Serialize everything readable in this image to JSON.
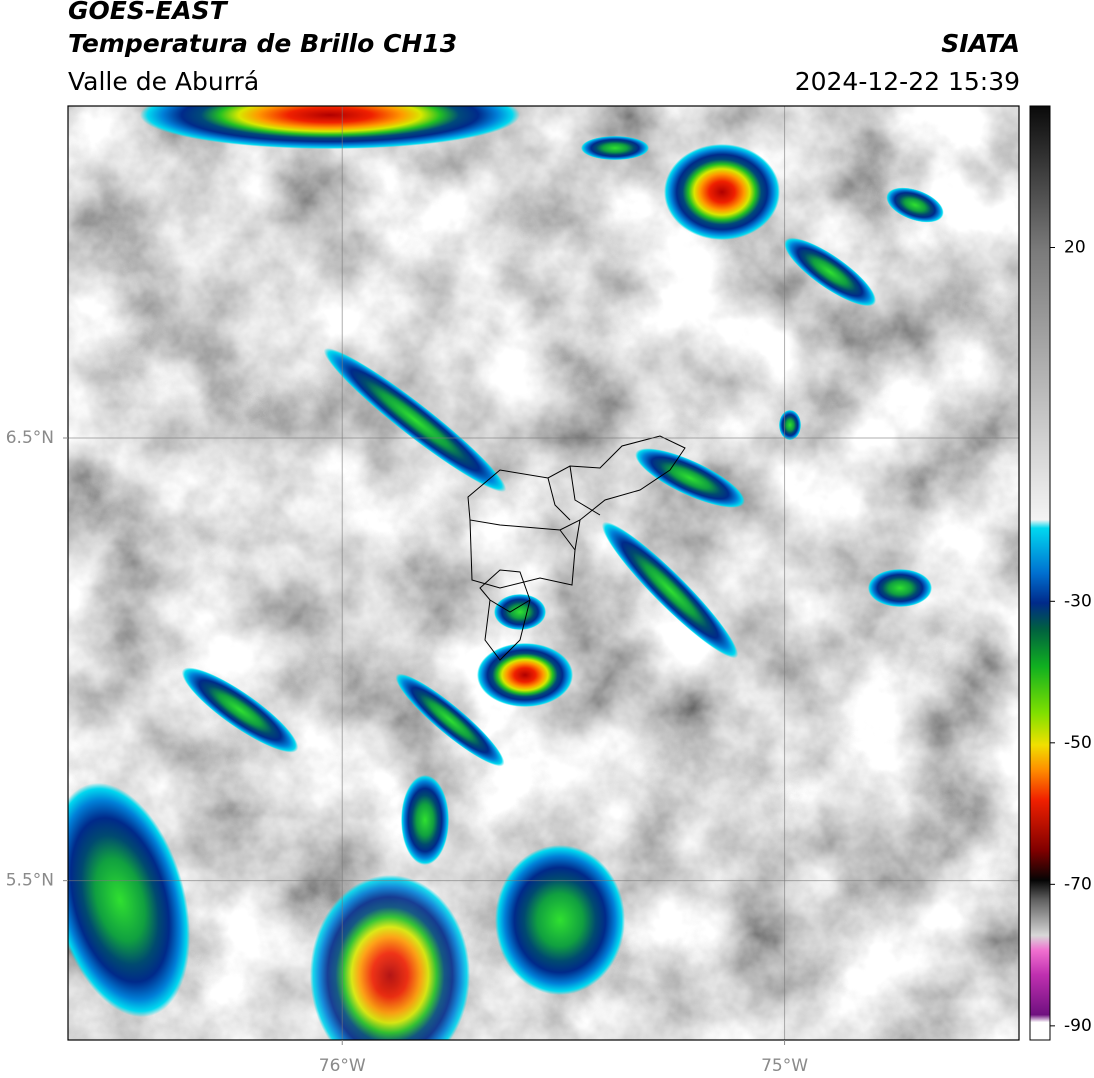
{
  "header": {
    "satellite": "GOES-EAST",
    "product": "Temperatura de Brillo CH13",
    "region": "Valle de Aburrá",
    "source": "SIATA",
    "datetime": "2024-12-22 15:39"
  },
  "map": {
    "xlim": [
      -76.62,
      -74.47
    ],
    "ylim": [
      5.14,
      7.25
    ],
    "xticks": [
      {
        "value": -76,
        "label": "76°W"
      },
      {
        "value": -75,
        "label": "75°W"
      }
    ],
    "yticks": [
      {
        "value": 5.5,
        "label": "5.5°N"
      },
      {
        "value": 6.5,
        "label": "6.5°N"
      }
    ],
    "grid": true
  },
  "colorbar": {
    "lim": [
      -92,
      40
    ],
    "ticks": [
      20,
      -30,
      -50,
      -70,
      -90
    ]
  }
}
